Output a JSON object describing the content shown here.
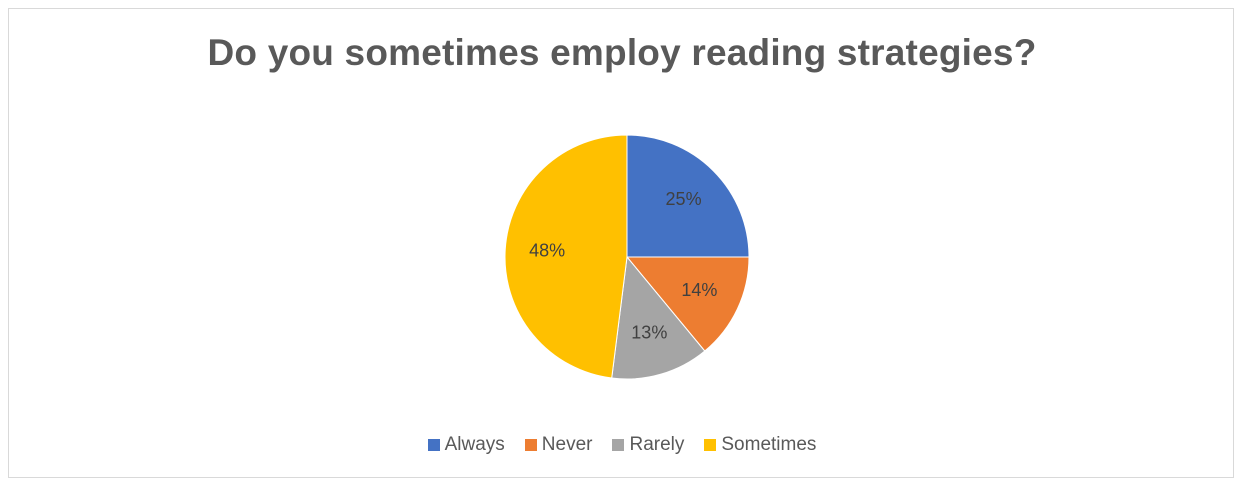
{
  "chart_data": {
    "type": "pie",
    "title": "Do you sometimes employ reading strategies?",
    "categories": [
      "Always",
      "Never",
      "Rarely",
      "Sometimes"
    ],
    "values": [
      25,
      14,
      13,
      48
    ],
    "labels": [
      "25%",
      "14%",
      "13%",
      "48%"
    ],
    "colors": [
      "#4472c4",
      "#ed7d31",
      "#a5a5a5",
      "#ffc000"
    ],
    "label_color": "#404040",
    "legend_position": "bottom",
    "start_angle_deg": 0,
    "direction": "clockwise"
  }
}
